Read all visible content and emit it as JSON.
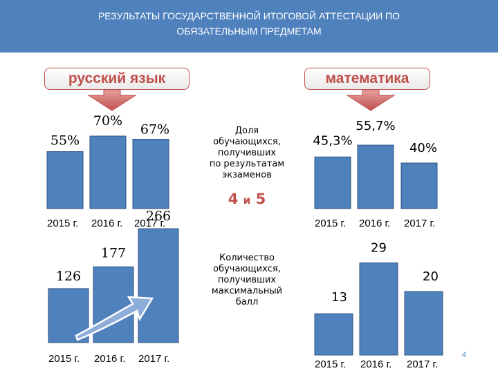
{
  "header": {
    "title_line1": "РЕЗУЛЬТАТЫ ГОСУДАРСТВЕННОЙ ИТОГОВОЙ АТТЕСТАЦИИ ПО",
    "title_line2": "ОБЯЗАТЕЛЬНЫМ ПРЕДМЕТАМ"
  },
  "subjects": {
    "left": "русский язык",
    "right": "математика"
  },
  "center_labels": {
    "top_lines": [
      "Доля",
      "обучающихся,",
      "получивших",
      "по результатам",
      "экзаменов"
    ],
    "grade_a": "4",
    "grade_and": "и",
    "grade_b": "5",
    "bottom_lines": [
      "Количество",
      "обучающихся,",
      "получивших",
      "максимальный",
      "балл"
    ]
  },
  "page_number": "4",
  "colors": {
    "header": "#4f81bd",
    "bar": "#4f81bd",
    "accent": "#c0504d"
  },
  "chart_data": [
    {
      "type": "bar",
      "name": "русский язык — доля 4 и 5",
      "categories": [
        "2015 г.",
        "2016 г.",
        "2017 г."
      ],
      "values": [
        55,
        70,
        67
      ],
      "labels": [
        "55%",
        "70%",
        "67%"
      ]
    },
    {
      "type": "bar",
      "name": "математика — доля 4 и 5",
      "categories": [
        "2015 г.",
        "2016 г.",
        "2017 г."
      ],
      "values": [
        45.3,
        55.7,
        40
      ],
      "labels": [
        "45,3%",
        "55,7%",
        "40%"
      ]
    },
    {
      "type": "bar",
      "name": "русский язык — максимальный балл",
      "categories": [
        "2015 г.",
        "2016 г.",
        "2017 г."
      ],
      "values": [
        126,
        177,
        266
      ],
      "labels": [
        "126",
        "177",
        "266"
      ]
    },
    {
      "type": "bar",
      "name": "математика — максимальный балл",
      "categories": [
        "2015 г.",
        "2016 г.",
        "2017 г."
      ],
      "values": [
        13,
        29,
        20
      ],
      "labels": [
        "13",
        "29",
        "20"
      ]
    }
  ]
}
